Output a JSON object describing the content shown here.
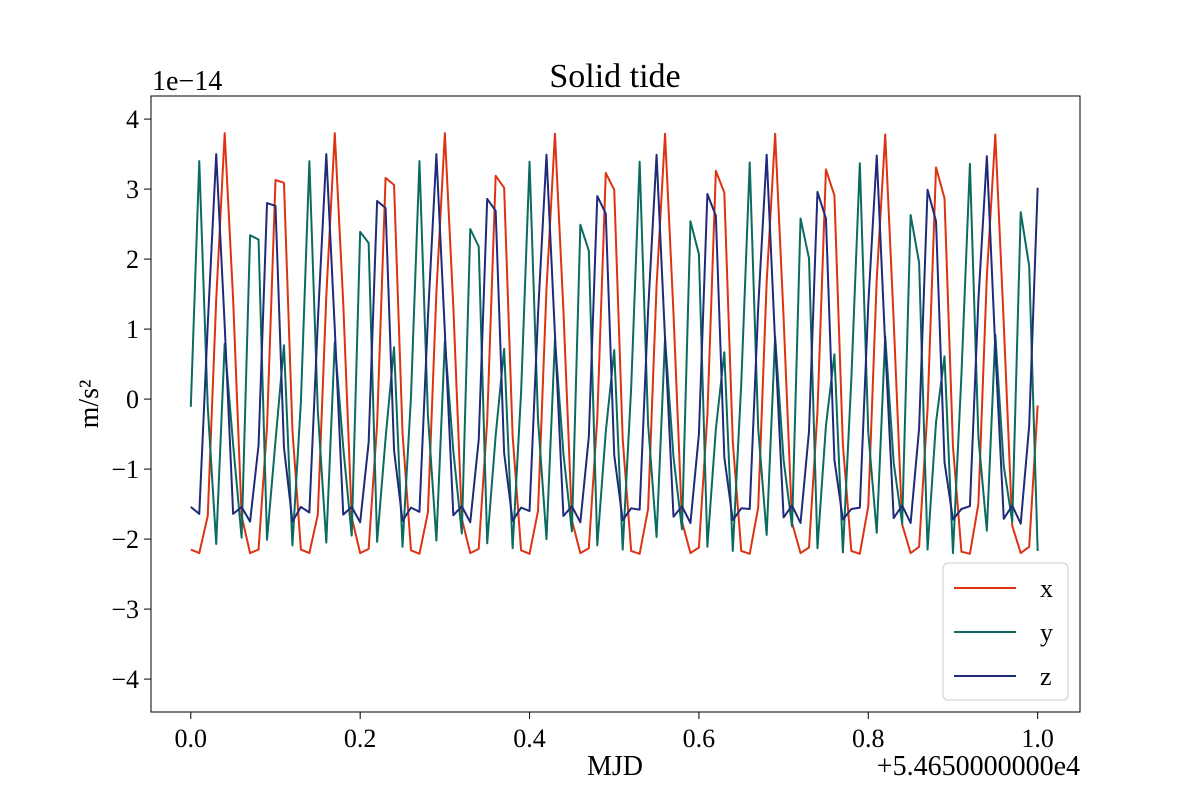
{
  "chart_data": {
    "type": "line",
    "title": "Solid tide",
    "x_label": "MJD",
    "y_label": "m/s²",
    "y_offset_label": "1e−14",
    "x_offset_label": "+5.4650000000e4",
    "x": [
      0,
      0.01,
      0.02,
      0.03,
      0.04,
      0.05,
      0.06,
      0.07,
      0.08,
      0.09,
      0.1,
      0.11,
      0.12,
      0.13,
      0.14,
      0.15,
      0.16,
      0.17,
      0.18,
      0.19,
      0.2,
      0.21,
      0.22,
      0.23,
      0.24,
      0.25,
      0.26,
      0.27,
      0.28,
      0.29,
      0.3,
      0.31,
      0.32,
      0.33,
      0.34,
      0.35,
      0.36,
      0.37,
      0.38,
      0.39,
      0.4,
      0.41,
      0.42,
      0.43,
      0.44,
      0.45,
      0.46,
      0.47,
      0.48,
      0.49,
      0.5,
      0.51,
      0.52,
      0.53,
      0.54,
      0.55,
      0.56,
      0.57,
      0.58,
      0.59,
      0.6,
      0.61,
      0.62,
      0.63,
      0.64,
      0.65,
      0.66,
      0.67,
      0.68,
      0.69,
      0.7,
      0.71,
      0.72,
      0.73,
      0.74,
      0.75,
      0.76,
      0.77,
      0.78,
      0.79,
      0.8,
      0.81,
      0.82,
      0.83,
      0.84,
      0.85,
      0.86,
      0.87,
      0.88,
      0.89,
      0.9,
      0.91,
      0.92,
      0.93,
      0.94,
      0.95,
      0.96,
      0.97,
      0.98,
      0.99,
      1
    ],
    "series": [
      {
        "name": "x",
        "color": "#dd3311",
        "values": [
          -2.15,
          -2.2,
          -1.67,
          1.42,
          3.8,
          1.42,
          -1.67,
          -2.2,
          -2.15,
          -0.4,
          3.13,
          3.09,
          -0.44,
          -2.15,
          -2.2,
          -1.65,
          1.47,
          3.8,
          1.37,
          -1.69,
          -2.2,
          -2.14,
          -0.36,
          3.16,
          3.06,
          -0.48,
          -2.16,
          -2.21,
          -1.62,
          1.52,
          3.8,
          1.32,
          -1.71,
          -2.2,
          -2.14,
          -0.31,
          3.19,
          3.02,
          -0.52,
          -2.16,
          -2.21,
          -1.6,
          1.57,
          3.79,
          1.27,
          -1.73,
          -2.2,
          -2.13,
          -0.27,
          3.23,
          2.99,
          -0.57,
          -2.17,
          -2.21,
          -1.57,
          1.62,
          3.79,
          1.22,
          -1.75,
          -2.2,
          -2.12,
          -0.23,
          3.26,
          2.95,
          -0.61,
          -2.17,
          -2.21,
          -1.55,
          1.67,
          3.79,
          1.16,
          -1.77,
          -2.2,
          -2.12,
          -0.18,
          3.28,
          2.91,
          -0.65,
          -2.17,
          -2.21,
          -1.53,
          1.72,
          3.78,
          1.12,
          -1.79,
          -2.2,
          -2.11,
          -0.14,
          3.31,
          2.87,
          -0.68,
          -2.18,
          -2.21,
          -1.5,
          1.76,
          3.78,
          1.07,
          -1.81,
          -2.2,
          -2.11,
          -0.09
        ]
      },
      {
        "name": "y",
        "color": "#0b6b5e",
        "values": [
          -0.11,
          3.4,
          -0.11,
          -2.07,
          0.79,
          -0.65,
          -1.98,
          2.34,
          2.28,
          -2.01,
          -0.6,
          0.77,
          -2.09,
          -0.04,
          3.4,
          -0.17,
          -2.05,
          0.81,
          -0.69,
          -1.95,
          2.39,
          2.23,
          -2.04,
          -0.56,
          0.74,
          -2.11,
          0.03,
          3.4,
          -0.23,
          -2.02,
          0.83,
          -0.74,
          -1.92,
          2.43,
          2.18,
          -2.06,
          -0.52,
          0.72,
          -2.13,
          0.09,
          3.39,
          -0.29,
          -2,
          0.85,
          -0.78,
          -1.89,
          2.49,
          2.12,
          -2.09,
          -0.47,
          0.7,
          -2.15,
          0.16,
          3.39,
          -0.36,
          -1.97,
          0.87,
          -0.83,
          -1.86,
          2.54,
          2.07,
          -2.11,
          -0.43,
          0.67,
          -2.17,
          0.22,
          3.38,
          -0.42,
          -1.94,
          0.89,
          -0.87,
          -1.82,
          2.58,
          2.01,
          -2.13,
          -0.38,
          0.64,
          -2.19,
          0.29,
          3.37,
          -0.48,
          -1.91,
          0.9,
          -0.91,
          -1.78,
          2.63,
          1.95,
          -2.15,
          -0.33,
          0.61,
          -2.2,
          0.35,
          3.36,
          -0.54,
          -1.88,
          0.92,
          -0.96,
          -1.75,
          2.67,
          1.9,
          -2.17
        ]
      },
      {
        "name": "z",
        "color": "#1f2a7a",
        "values": [
          -1.54,
          -1.64,
          1.06,
          3.5,
          1.06,
          -1.64,
          -1.54,
          -1.75,
          -0.66,
          2.8,
          2.76,
          -0.69,
          -1.75,
          -1.54,
          -1.62,
          1.11,
          3.5,
          1.01,
          -1.65,
          -1.54,
          -1.76,
          -0.62,
          2.83,
          2.73,
          -0.73,
          -1.74,
          -1.55,
          -1.61,
          1.16,
          3.5,
          0.96,
          -1.66,
          -1.53,
          -1.76,
          -0.58,
          2.86,
          2.69,
          -0.77,
          -1.74,
          -1.55,
          -1.6,
          1.21,
          3.49,
          0.92,
          -1.67,
          -1.53,
          -1.76,
          -0.54,
          2.9,
          2.65,
          -0.8,
          -1.73,
          -1.56,
          -1.58,
          1.26,
          3.49,
          0.86,
          -1.68,
          -1.53,
          -1.77,
          -0.5,
          2.93,
          2.62,
          -0.83,
          -1.73,
          -1.56,
          -1.57,
          1.31,
          3.49,
          0.81,
          -1.69,
          -1.52,
          -1.77,
          -0.46,
          2.96,
          2.58,
          -0.87,
          -1.72,
          -1.57,
          -1.55,
          1.36,
          3.48,
          0.77,
          -1.7,
          -1.52,
          -1.77,
          -0.42,
          2.99,
          2.54,
          -0.9,
          -1.72,
          -1.57,
          -1.53,
          1.41,
          3.47,
          0.72,
          -1.71,
          -1.52,
          -1.78,
          -0.38,
          3.02
        ]
      }
    ],
    "xlim": [
      -0.047,
      1.05
    ],
    "ylim": [
      -4.47,
      4.33
    ],
    "xticks": [
      {
        "value": 0,
        "label": "0.0"
      },
      0.2,
      0.4,
      0.6,
      0.8,
      {
        "value": 1,
        "label": "1.0"
      }
    ],
    "yticks": [
      {
        "value": -4,
        "label": "−4"
      },
      {
        "value": -3,
        "label": "−3"
      },
      {
        "value": -2,
        "label": "−2"
      },
      {
        "value": -1,
        "label": "−1"
      },
      0,
      1,
      2,
      3,
      4
    ],
    "grid": false,
    "legend": "lower right"
  }
}
